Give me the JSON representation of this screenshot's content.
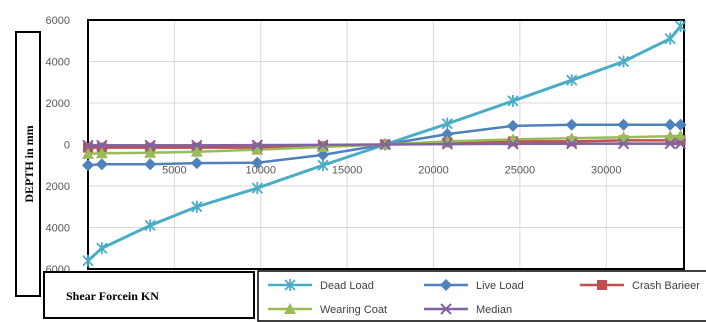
{
  "chart_data": {
    "type": "line",
    "ylabel": "DEPTH in mm",
    "xlabel": "Shear Forcein KN",
    "xlim": [
      0,
      34500
    ],
    "ylim": [
      -6000,
      6000
    ],
    "x_ticks": [
      5000,
      10000,
      15000,
      20000,
      25000,
      30000
    ],
    "y_ticks": [
      -6000,
      -4000,
      -2000,
      0,
      2000,
      4000,
      6000
    ],
    "y_tick_labels": [
      "6000",
      "4000",
      "2000",
      "0",
      "2000",
      "4000",
      "6000"
    ],
    "grid": true,
    "legend_position": "bottom",
    "series": [
      {
        "name": "Dead Load",
        "color": "#4bacc6",
        "marker": "x-star",
        "points": [
          [
            0,
            -5600
          ],
          [
            800,
            -5000
          ],
          [
            3600,
            -3900
          ],
          [
            6300,
            -3000
          ],
          [
            9800,
            -2100
          ],
          [
            13600,
            -1000
          ],
          [
            17200,
            0
          ],
          [
            20800,
            1000
          ],
          [
            24600,
            2100
          ],
          [
            28000,
            3100
          ],
          [
            31000,
            4000
          ],
          [
            33700,
            5100
          ],
          [
            34300,
            5700
          ]
        ]
      },
      {
        "name": "Live Load",
        "color": "#4f81bd",
        "marker": "diamond",
        "points": [
          [
            0,
            -1000
          ],
          [
            800,
            -950
          ],
          [
            3600,
            -950
          ],
          [
            6300,
            -900
          ],
          [
            9800,
            -880
          ],
          [
            13600,
            -500
          ],
          [
            17200,
            0
          ],
          [
            20800,
            500
          ],
          [
            24600,
            900
          ],
          [
            28000,
            950
          ],
          [
            31000,
            950
          ],
          [
            33700,
            950
          ],
          [
            34300,
            950
          ]
        ]
      },
      {
        "name": "Crash Barieer",
        "color": "#c0504d",
        "marker": "square",
        "points": [
          [
            0,
            -150
          ],
          [
            800,
            -150
          ],
          [
            3600,
            -150
          ],
          [
            6300,
            -150
          ],
          [
            9800,
            -150
          ],
          [
            13600,
            -80
          ],
          [
            17200,
            0
          ],
          [
            20800,
            100
          ],
          [
            24600,
            150
          ],
          [
            28000,
            150
          ],
          [
            31000,
            200
          ],
          [
            33700,
            200
          ],
          [
            34300,
            200
          ]
        ]
      },
      {
        "name": "Wearing Coat",
        "color": "#9bbb59",
        "marker": "triangle",
        "points": [
          [
            0,
            -450
          ],
          [
            800,
            -420
          ],
          [
            3600,
            -400
          ],
          [
            6300,
            -350
          ],
          [
            9800,
            -250
          ],
          [
            13600,
            -120
          ],
          [
            17200,
            0
          ],
          [
            20800,
            150
          ],
          [
            24600,
            250
          ],
          [
            28000,
            300
          ],
          [
            31000,
            350
          ],
          [
            33700,
            400
          ],
          [
            34300,
            420
          ]
        ]
      },
      {
        "name": "Median",
        "color": "#8064a2",
        "marker": "x",
        "points": [
          [
            0,
            -40
          ],
          [
            800,
            -40
          ],
          [
            3600,
            -40
          ],
          [
            6300,
            -40
          ],
          [
            9800,
            -30
          ],
          [
            13600,
            -20
          ],
          [
            17200,
            0
          ],
          [
            20800,
            20
          ],
          [
            24600,
            30
          ],
          [
            28000,
            40
          ],
          [
            31000,
            40
          ],
          [
            33700,
            40
          ],
          [
            34300,
            40
          ]
        ]
      }
    ]
  }
}
